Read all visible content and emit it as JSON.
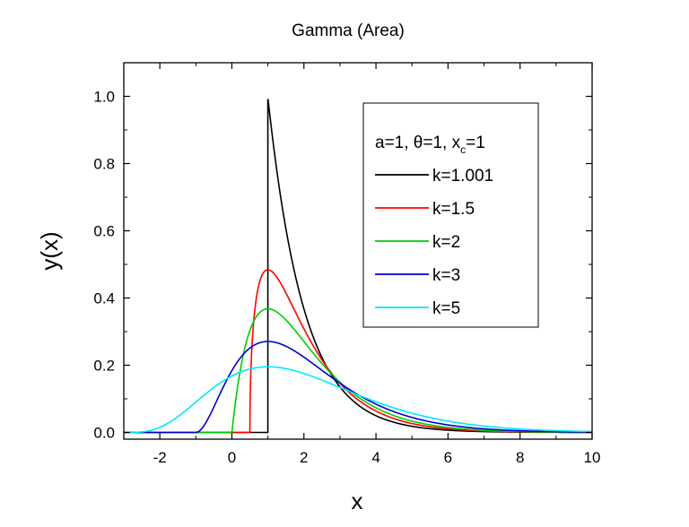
{
  "chart_data": {
    "type": "line",
    "title": "Gamma (Area)",
    "xlabel": "x",
    "ylabel": "y(x)",
    "xlim": [
      -3,
      10
    ],
    "ylim": [
      -0.02,
      1.1
    ],
    "x_ticks": [
      -2,
      0,
      2,
      4,
      6,
      8,
      10
    ],
    "x_tick_labels": [
      "-2",
      "0",
      "2",
      "4",
      "6",
      "8",
      "10"
    ],
    "y_ticks": [
      0.0,
      0.2,
      0.4,
      0.6,
      0.8,
      1.0
    ],
    "y_tick_labels": [
      "0.0",
      "0.2",
      "0.4",
      "0.6",
      "0.8",
      "1.0"
    ],
    "grid": false,
    "legend_position": "top-right",
    "legend_header": {
      "prefix": "a=1, ",
      "theta": "θ",
      "middle": "=1, x",
      "sub": "c",
      "suffix": "=1"
    },
    "parameters": {
      "a": 1,
      "theta": 1,
      "xc": 1
    },
    "series": [
      {
        "name": "k=1.001",
        "k": 1.001,
        "color": "#000000"
      },
      {
        "name": "k=1.5",
        "k": 1.5,
        "color": "#ff0000"
      },
      {
        "name": "k=2",
        "k": 2,
        "color": "#00cc00"
      },
      {
        "name": "k=3",
        "k": 3,
        "color": "#0000cc"
      },
      {
        "name": "k=5",
        "k": 5,
        "color": "#00e5ff"
      }
    ]
  }
}
